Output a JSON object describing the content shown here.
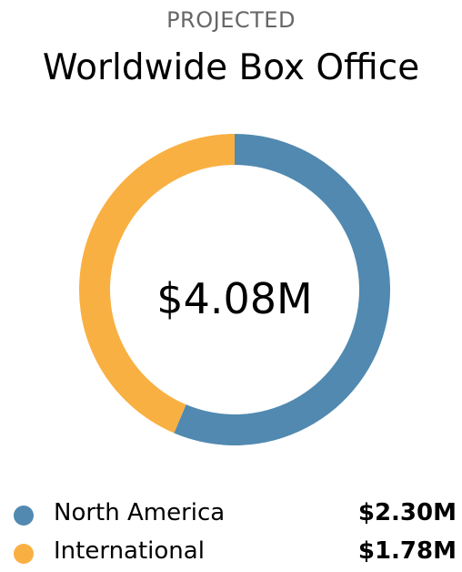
{
  "header": {
    "kicker": "PROJECTED",
    "title": "Worldwide Box Office"
  },
  "chart_data": {
    "type": "pie",
    "variant": "donut",
    "title": "Worldwide Box Office",
    "subtitle": "PROJECTED",
    "center_label": "$4.08M",
    "total": 4.08,
    "unit": "$M",
    "legend_position": "bottom",
    "slices": [
      {
        "name": "North America",
        "value": 2.3,
        "label": "$2.30M",
        "color": "#5189b0"
      },
      {
        "name": "International",
        "value": 1.78,
        "label": "$1.78M",
        "color": "#f9b042"
      }
    ]
  }
}
